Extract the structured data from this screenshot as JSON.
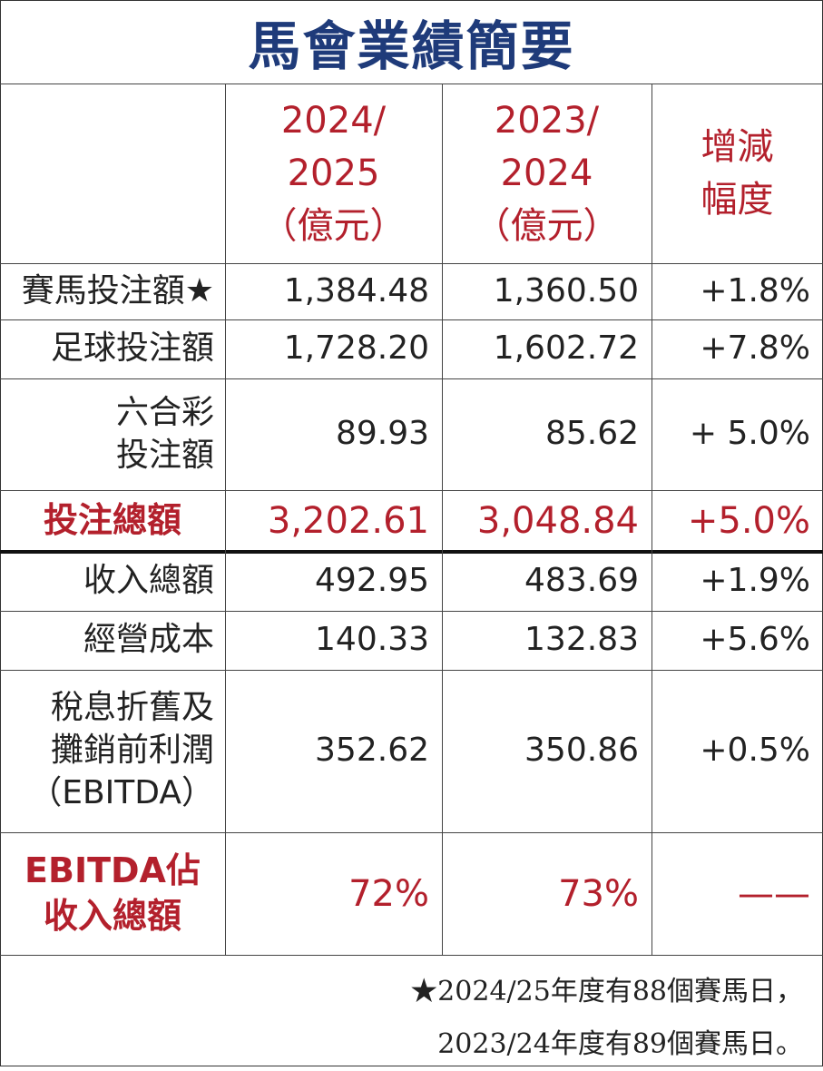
{
  "title": "馬會業績簡要",
  "header": {
    "columns": [
      {
        "lines": [
          "2024/",
          "2025",
          "（億元）"
        ]
      },
      {
        "lines": [
          "2023/",
          "2024",
          "（億元）"
        ]
      },
      {
        "lines": [
          "增減",
          "幅度"
        ]
      }
    ]
  },
  "table": {
    "rows": [
      {
        "label": [
          "賽馬投注額★"
        ],
        "values": [
          "1,384.48",
          "1,360.50",
          "+1.8%"
        ],
        "highlight": false
      },
      {
        "label": [
          "足球投注額"
        ],
        "values": [
          "1,728.20",
          "1,602.72",
          "+7.8%"
        ],
        "highlight": false
      },
      {
        "label": [
          "六合彩",
          "投注額"
        ],
        "values": [
          "89.93",
          "85.62",
          "+ 5.0%"
        ],
        "highlight": false
      },
      {
        "label": [
          "投注總額"
        ],
        "values": [
          "3,202.61",
          "3,048.84",
          "+5.0%"
        ],
        "highlight": true
      },
      {
        "label": [
          "收入總額"
        ],
        "values": [
          "492.95",
          "483.69",
          "+1.9%"
        ],
        "highlight": false
      },
      {
        "label": [
          "經營成本"
        ],
        "values": [
          "140.33",
          "132.83",
          "+5.6%"
        ],
        "highlight": false
      },
      {
        "label": [
          "稅息折舊及",
          "攤銷前利潤",
          "（EBITDA）"
        ],
        "values": [
          "352.62",
          "350.86",
          "+0.5%"
        ],
        "highlight": false
      },
      {
        "label": [
          "EBITDA佔",
          "收入總額"
        ],
        "values": [
          "72%",
          "73%",
          "——"
        ],
        "highlight": true
      }
    ]
  },
  "footnote": {
    "lines": [
      "★2024/25年度有88個賽馬日，",
      "2023/24年度有89個賽馬日。"
    ]
  }
}
